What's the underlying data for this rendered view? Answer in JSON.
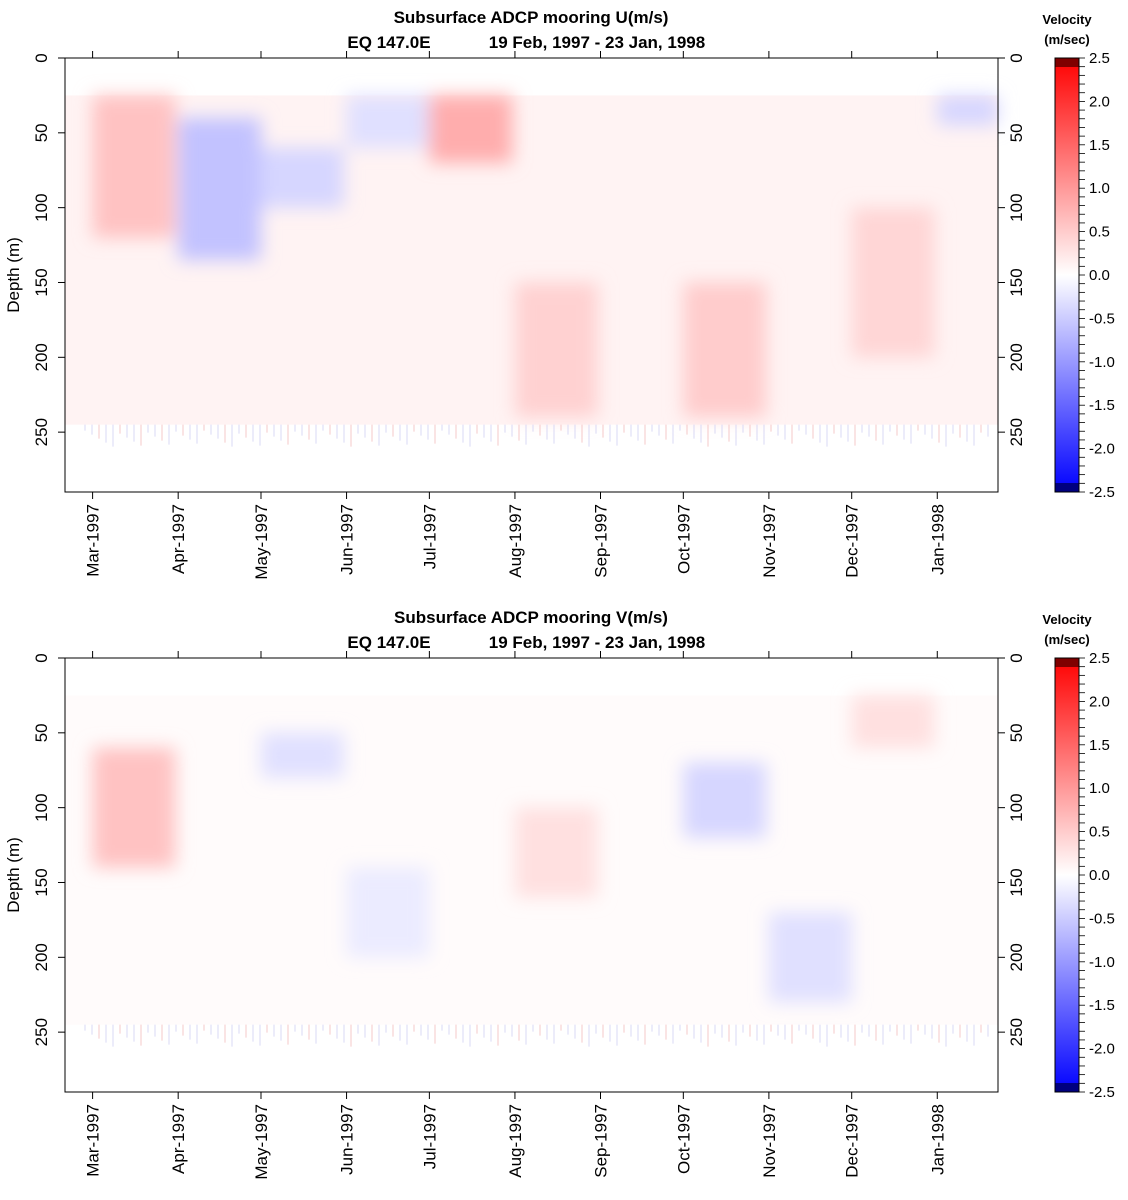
{
  "chart_data": [
    {
      "type": "heatmap",
      "variable": "U",
      "title_line1": "Subsurface ADCP mooring U(m/s)",
      "title_line2_location": "EQ 147.0E",
      "title_line2_period": "19 Feb, 1997 - 23 Jan, 1998",
      "ylabel": "Depth (m)",
      "ylim": [
        0,
        290
      ],
      "yticks": [
        "0",
        "50",
        "100",
        "150",
        "200",
        "250"
      ],
      "xlim": [
        "1997-02-19",
        "1998-01-23"
      ],
      "xticks": [
        "Mar-1997",
        "Apr-1997",
        "May-1997",
        "Jun-1997",
        "Jul-1997",
        "Aug-1997",
        "Sep-1997",
        "Oct-1997",
        "Nov-1997",
        "Dec-1997",
        "Jan-1998"
      ],
      "data_depth_range": [
        25,
        245
      ],
      "colorbar": {
        "title_line1": "Velocity",
        "title_line2": "(m/sec)",
        "range": [
          -2.5,
          2.5
        ],
        "ticks": [
          "2.5",
          "2.0",
          "1.5",
          "1.0",
          "0.5",
          "0.0",
          "-0.5",
          "-1.0",
          "-1.5",
          "-2.0",
          "-2.5"
        ],
        "colors": {
          "negative": "#0000ff",
          "zero": "#ffffff",
          "positive": "#ff0000",
          "max_end": "#7f0000",
          "min_end": "#00007f"
        }
      },
      "features": [
        {
          "month": "Mar-1997",
          "depth_range": [
            25,
            120
          ],
          "value": 0.6
        },
        {
          "month": "Apr-1997",
          "depth_range": [
            40,
            135
          ],
          "value": -0.6
        },
        {
          "month": "May-1997",
          "depth_range": [
            60,
            100
          ],
          "value": -0.4
        },
        {
          "month": "Jun-1997",
          "depth_range": [
            25,
            60
          ],
          "value": -0.3
        },
        {
          "month": "Jul-1997",
          "depth_range": [
            25,
            70
          ],
          "value": 0.8
        },
        {
          "month": "Aug-1997",
          "depth_range": [
            150,
            240
          ],
          "value": 0.45
        },
        {
          "month": "Oct-1997",
          "depth_range": [
            150,
            240
          ],
          "value": 0.5
        },
        {
          "month": "Dec-1997",
          "depth_range": [
            100,
            200
          ],
          "value": 0.4
        },
        {
          "month": "Jan-1998",
          "depth_range": [
            25,
            45
          ],
          "value": -0.4
        }
      ]
    },
    {
      "type": "heatmap",
      "variable": "V",
      "title_line1": "Subsurface ADCP mooring V(m/s)",
      "title_line2_location": "EQ 147.0E",
      "title_line2_period": "19 Feb, 1997 - 23 Jan, 1998",
      "ylabel": "Depth (m)",
      "ylim": [
        0,
        290
      ],
      "yticks": [
        "0",
        "50",
        "100",
        "150",
        "200",
        "250"
      ],
      "xlim": [
        "1997-02-19",
        "1998-01-23"
      ],
      "xticks": [
        "Mar-1997",
        "Apr-1997",
        "May-1997",
        "Jun-1997",
        "Jul-1997",
        "Aug-1997",
        "Sep-1997",
        "Oct-1997",
        "Nov-1997",
        "Dec-1997",
        "Jan-1998"
      ],
      "data_depth_range": [
        25,
        245
      ],
      "colorbar": {
        "title_line1": "Velocity",
        "title_line2": "(m/sec)",
        "range": [
          -2.5,
          2.5
        ],
        "ticks": [
          "2.5",
          "2.0",
          "1.5",
          "1.0",
          "0.5",
          "0.0",
          "-0.5",
          "-1.0",
          "-1.5",
          "-2.0",
          "-2.5"
        ],
        "colors": {
          "negative": "#0000ff",
          "zero": "#ffffff",
          "positive": "#ff0000",
          "max_end": "#7f0000",
          "min_end": "#00007f"
        }
      },
      "features": [
        {
          "month": "Mar-1997",
          "depth_range": [
            60,
            140
          ],
          "value": 0.6
        },
        {
          "month": "May-1997",
          "depth_range": [
            50,
            80
          ],
          "value": -0.3
        },
        {
          "month": "Jun-1997",
          "depth_range": [
            140,
            200
          ],
          "value": -0.2
        },
        {
          "month": "Aug-1997",
          "depth_range": [
            100,
            160
          ],
          "value": 0.3
        },
        {
          "month": "Oct-1997",
          "depth_range": [
            70,
            120
          ],
          "value": -0.4
        },
        {
          "month": "Nov-1997",
          "depth_range": [
            170,
            230
          ],
          "value": -0.3
        },
        {
          "month": "Dec-1997",
          "depth_range": [
            25,
            60
          ],
          "value": 0.3
        }
      ]
    }
  ]
}
